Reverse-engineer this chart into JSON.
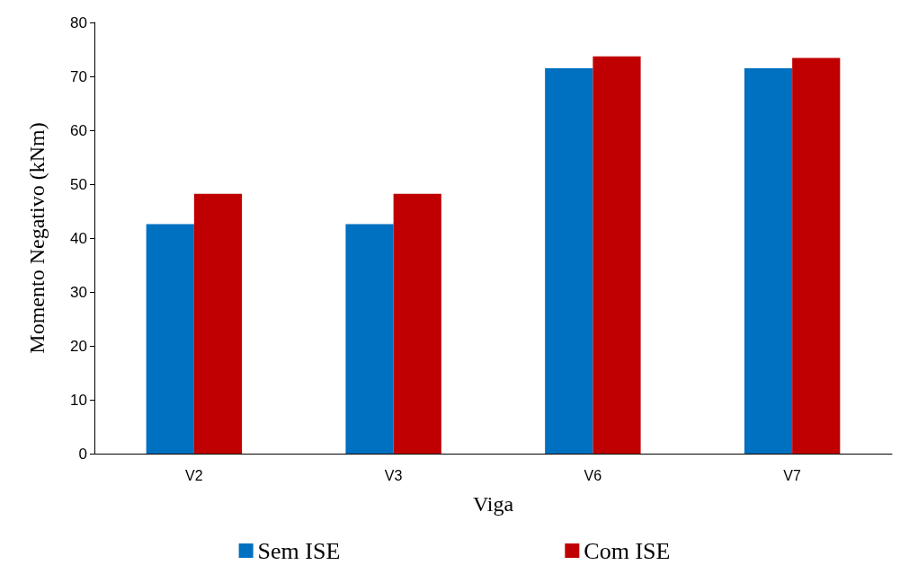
{
  "chart_data": {
    "type": "bar",
    "xlabel": "Viga",
    "ylabel": "Momento Negativo (kNm)",
    "categories": [
      "V2",
      "V3",
      "V6",
      "V7"
    ],
    "series": [
      {
        "name": "Sem ISE",
        "color": "#0070c0",
        "values": [
          42.6,
          42.6,
          71.5,
          71.5
        ]
      },
      {
        "name": "Com ISE",
        "color": "#c00000",
        "values": [
          48.2,
          48.2,
          73.7,
          73.4
        ]
      }
    ],
    "ylim": [
      0,
      80
    ],
    "yticks": [
      0,
      10,
      20,
      30,
      40,
      50,
      60,
      70,
      80
    ],
    "grid": false,
    "legend": "bottom"
  }
}
